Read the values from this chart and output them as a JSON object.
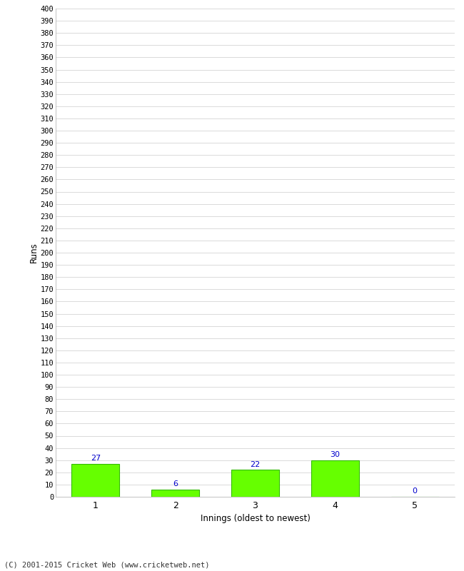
{
  "xlabel": "Innings (oldest to newest)",
  "ylabel": "Runs",
  "categories": [
    1,
    2,
    3,
    4,
    5
  ],
  "values": [
    27,
    6,
    22,
    30,
    0
  ],
  "bar_color": "#66ff00",
  "bar_edge_color": "#33bb00",
  "label_color": "#0000cc",
  "ylim": [
    0,
    400
  ],
  "ytick_step": 10,
  "background_color": "#ffffff",
  "grid_color": "#cccccc",
  "footer": "(C) 2001-2015 Cricket Web (www.cricketweb.net)"
}
